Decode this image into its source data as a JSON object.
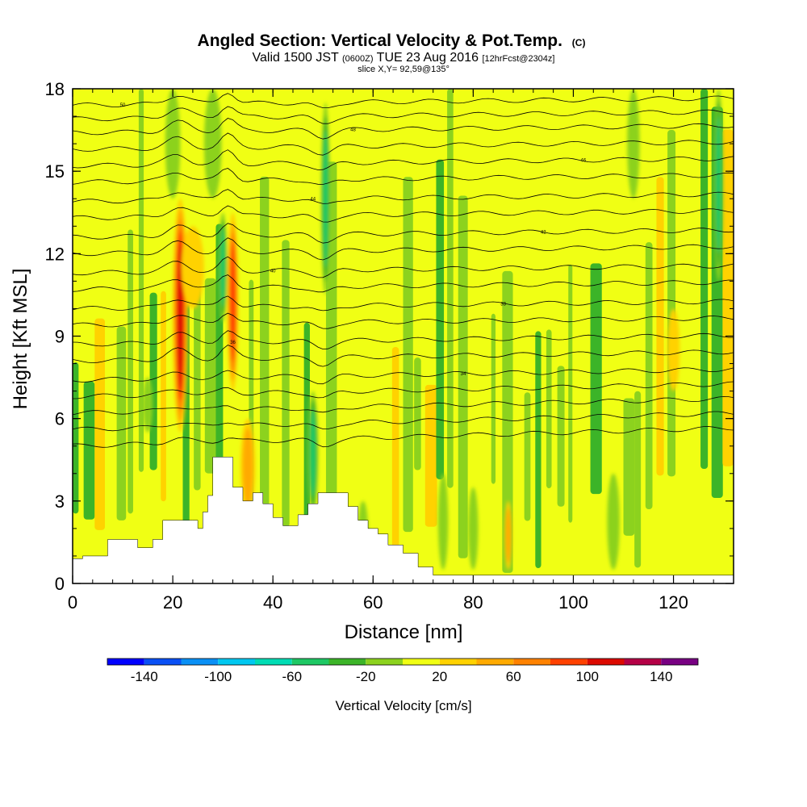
{
  "chart_data": {
    "type": "heatmap",
    "title": "Angled Section: Vertical Velocity & Pot.Temp.",
    "title_suffix": "(C)",
    "subtitle_parts": [
      "Valid 1500 JST",
      "(0600Z)",
      "TUE 23 Aug 2016",
      "[12hrFcst@2304z]"
    ],
    "slice_label": "slice X,Y= 92,59@135°",
    "xlabel": "Distance [nm]",
    "ylabel": "Height [Kft MSL]",
    "xlim": [
      0,
      132
    ],
    "ylim": [
      0,
      18
    ],
    "x_ticks": [
      0,
      20,
      40,
      60,
      80,
      100,
      120
    ],
    "y_ticks": [
      0,
      3,
      6,
      9,
      12,
      15,
      18
    ],
    "colorbar": {
      "label": "Vertical Velocity [cm/s]",
      "tick_labels": [
        -140,
        -100,
        -60,
        -20,
        20,
        60,
        100,
        140
      ],
      "bins": [
        {
          "lo": -160,
          "hi": -140,
          "color": "#0000ff"
        },
        {
          "lo": -140,
          "hi": -120,
          "color": "#0a50f5"
        },
        {
          "lo": -120,
          "hi": -100,
          "color": "#0a90f5"
        },
        {
          "lo": -100,
          "hi": -80,
          "color": "#00c8f0"
        },
        {
          "lo": -80,
          "hi": -60,
          "color": "#00dcb4"
        },
        {
          "lo": -60,
          "hi": -40,
          "color": "#1ec864"
        },
        {
          "lo": -40,
          "hi": -20,
          "color": "#3cb428"
        },
        {
          "lo": -20,
          "hi": 0,
          "color": "#8cd21e"
        },
        {
          "lo": 0,
          "hi": 20,
          "color": "#f0ff14"
        },
        {
          "lo": 20,
          "hi": 40,
          "color": "#ffd200"
        },
        {
          "lo": 40,
          "hi": 60,
          "color": "#ffaa00"
        },
        {
          "lo": 60,
          "hi": 80,
          "color": "#ff8200"
        },
        {
          "lo": 80,
          "hi": 100,
          "color": "#ff4100"
        },
        {
          "lo": 100,
          "hi": 120,
          "color": "#dc0a00"
        },
        {
          "lo": 120,
          "hi": 140,
          "color": "#b40046"
        },
        {
          "lo": 140,
          "hi": 160,
          "color": "#780082"
        }
      ]
    },
    "features": [
      {
        "x": 21.5,
        "y0": 5.5,
        "y1": 14,
        "w": 2.6,
        "v": 110
      },
      {
        "x": 32,
        "y0": 7,
        "y1": 13.5,
        "w": 1.8,
        "v": 95
      },
      {
        "x": 30,
        "y0": 9.5,
        "y1": 13.5,
        "w": 1.2,
        "v": -75
      },
      {
        "x": 50.5,
        "y0": 10.5,
        "y1": 17.5,
        "w": 1.3,
        "v": -70
      },
      {
        "x": 48,
        "y0": 2.5,
        "y1": 7,
        "w": 1.6,
        "v": -65
      },
      {
        "x": 129,
        "y0": 11,
        "y1": 18,
        "w": 1.4,
        "v": -70
      },
      {
        "x": 35,
        "y0": 2.5,
        "y1": 6,
        "w": 2.5,
        "v": 50
      },
      {
        "x": 24,
        "y0": 10,
        "y1": 13,
        "w": 4,
        "v": 30
      },
      {
        "x": 15,
        "y0": 5.5,
        "y1": 7.5,
        "w": 1.5,
        "v": -35
      },
      {
        "x": 20,
        "y0": 14,
        "y1": 18,
        "w": 2.5,
        "v": -30
      },
      {
        "x": 28,
        "y0": 14,
        "y1": 18,
        "w": 3,
        "v": -30
      },
      {
        "x": 80,
        "y0": 0.5,
        "y1": 3.5,
        "w": 1.5,
        "v": -35
      },
      {
        "x": 87,
        "y0": 0.5,
        "y1": 3,
        "w": 1,
        "v": 45
      },
      {
        "x": 112,
        "y0": 14,
        "y1": 18,
        "w": 2,
        "v": -35
      },
      {
        "x": 120,
        "y0": 7,
        "y1": 10,
        "w": 2,
        "v": 35
      },
      {
        "x": 58,
        "y0": 0.8,
        "y1": 3,
        "w": 1.5,
        "v": -35
      },
      {
        "x": 74,
        "y0": 0.5,
        "y1": 4,
        "w": 1.5,
        "v": -30
      },
      {
        "x": 108,
        "y0": 0.5,
        "y1": 4,
        "w": 2,
        "v": -35
      }
    ],
    "terrain": [
      [
        0,
        0.9
      ],
      [
        2,
        1.0
      ],
      [
        7,
        1.6
      ],
      [
        11,
        1.6
      ],
      [
        13,
        1.3
      ],
      [
        16,
        1.6
      ],
      [
        18,
        2.3
      ],
      [
        24,
        2.3
      ],
      [
        25,
        2.0
      ],
      [
        26,
        2.6
      ],
      [
        27,
        3.2
      ],
      [
        28,
        4.6
      ],
      [
        31,
        4.6
      ],
      [
        32,
        3.5
      ],
      [
        34,
        3.0
      ],
      [
        36,
        3.3
      ],
      [
        38,
        2.9
      ],
      [
        40,
        2.4
      ],
      [
        42,
        2.1
      ],
      [
        44,
        2.1
      ],
      [
        45,
        2.5
      ],
      [
        47,
        2.9
      ],
      [
        49,
        3.3
      ],
      [
        53,
        3.3
      ],
      [
        55,
        2.8
      ],
      [
        57,
        2.3
      ],
      [
        59,
        2.0
      ],
      [
        61,
        1.8
      ],
      [
        63,
        1.4
      ],
      [
        66,
        1.1
      ],
      [
        69,
        0.6
      ],
      [
        72,
        0.3
      ],
      [
        132,
        0.3
      ]
    ],
    "theta_lines": [
      {
        "y0": 17.4,
        "slope": 0.004,
        "label": "50"
      },
      {
        "y0": 16.9,
        "slope": 0.004
      },
      {
        "y0": 16.4,
        "slope": 0.004,
        "label": "48"
      },
      {
        "y0": 15.8,
        "slope": 0.004
      },
      {
        "y0": 15.2,
        "slope": 0.004,
        "label": "46"
      },
      {
        "y0": 14.6,
        "slope": 0.004
      },
      {
        "y0": 13.9,
        "slope": 0.004,
        "label": "44"
      },
      {
        "y0": 13.3,
        "slope": 0.004
      },
      {
        "y0": 12.6,
        "slope": 0.004,
        "label": "42"
      },
      {
        "y0": 12.0,
        "slope": 0.004
      },
      {
        "y0": 11.3,
        "slope": 0.004,
        "label": "40"
      },
      {
        "y0": 10.7,
        "slope": 0.004
      },
      {
        "y0": 10.0,
        "slope": 0.004,
        "label": "38"
      },
      {
        "y0": 9.4,
        "slope": 0.004
      },
      {
        "y0": 8.7,
        "slope": 0.005,
        "label": "36"
      },
      {
        "y0": 8.1,
        "slope": 0.005
      },
      {
        "y0": 7.4,
        "slope": 0.006,
        "label": "34"
      },
      {
        "y0": 6.8,
        "slope": 0.007
      },
      {
        "y0": 6.2,
        "slope": 0.008
      },
      {
        "y0": 5.6,
        "slope": 0.009
      },
      {
        "y0": 5.0,
        "slope": 0.01
      }
    ]
  }
}
